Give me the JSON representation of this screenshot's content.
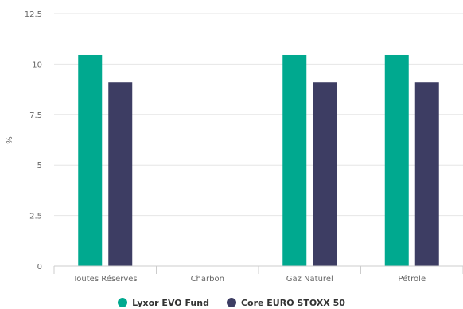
{
  "chart_data": {
    "type": "bar",
    "categories": [
      "Toutes Réserves",
      "Charbon",
      "Gaz Naturel",
      "Pétrole"
    ],
    "series": [
      {
        "name": "Lyxor EVO Fund",
        "color": "#00A98F",
        "values": [
          10.45,
          0,
          10.45,
          10.45
        ]
      },
      {
        "name": "Core EURO STOXX 50",
        "color": "#3D3D63",
        "values": [
          9.1,
          0,
          9.1,
          9.1
        ]
      }
    ],
    "ylabel": "%",
    "ylim": [
      0,
      12.5
    ],
    "yticks": [
      "0",
      "2.5",
      "5",
      "7.5",
      "10",
      "12.5"
    ],
    "grid": true,
    "legend": "bottom-center"
  }
}
